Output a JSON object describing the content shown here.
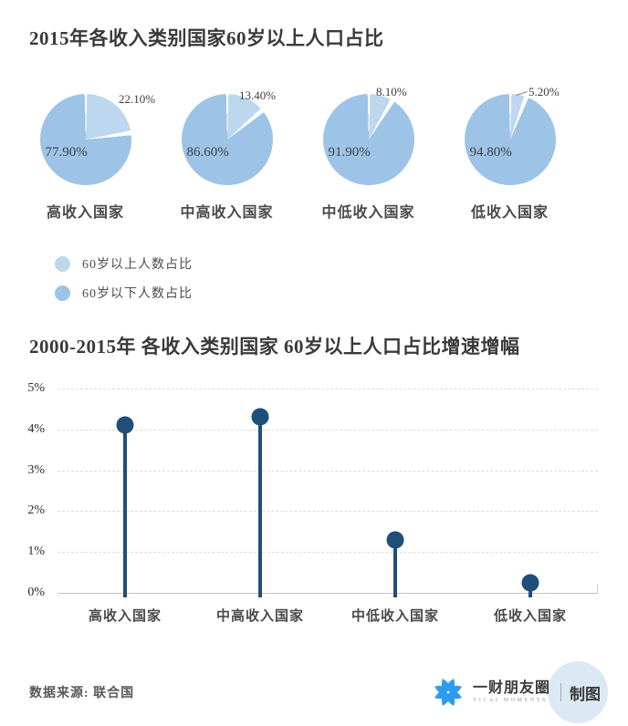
{
  "colors": {
    "light_blue": "#BDD7EE",
    "medium_blue": "#9DC3E6",
    "navy": "#1F4E79",
    "logo_blue": "#2D9CF0",
    "logo_bg": "#DCE9F5"
  },
  "chart_data": [
    {
      "type": "pie",
      "title": "2015年各收入类别国家60岁以上人口占比",
      "legend": [
        {
          "label": "60岁以上人数占比",
          "color_key": "light_blue"
        },
        {
          "label": "60岁以下人数占比",
          "color_key": "medium_blue"
        }
      ],
      "pies": [
        {
          "category": "高收入国家",
          "over60_pct": 22.1,
          "over60_label": "22.10%",
          "under60_pct": 77.9,
          "under60_label": "77.90%",
          "leader_line": false
        },
        {
          "category": "中高收入国家",
          "over60_pct": 13.4,
          "over60_label": "13.40%",
          "under60_pct": 86.6,
          "under60_label": "86.60%",
          "leader_line": false
        },
        {
          "category": "中低收入国家",
          "over60_pct": 8.1,
          "over60_label": "8.10%",
          "under60_pct": 91.9,
          "under60_label": "91.90%",
          "leader_line": false
        },
        {
          "category": "低收入国家",
          "over60_pct": 5.2,
          "over60_label": "5.20%",
          "under60_pct": 94.8,
          "under60_label": "94.80%",
          "leader_line": true
        }
      ]
    },
    {
      "type": "lollipop",
      "title": "2000-2015年 各收入类别国家 60岁以上人口占比增速增幅",
      "categories": [
        "高收入国家",
        "中高收入国家",
        "中低收入国家",
        "低收入国家"
      ],
      "values": [
        4.1,
        4.3,
        1.3,
        0.25
      ],
      "ylim": [
        0,
        5
      ],
      "yticks": [
        "5%",
        "4%",
        "3%",
        "2%",
        "1%",
        "0%"
      ],
      "grid": "horizontal-dashed",
      "legend_position": "none"
    }
  ],
  "footer": {
    "source": "数据来源: 联合国",
    "logo_name": "一财朋友圈",
    "logo_sub": "YICAI MOMENTS",
    "logo_suffix": "制图"
  }
}
